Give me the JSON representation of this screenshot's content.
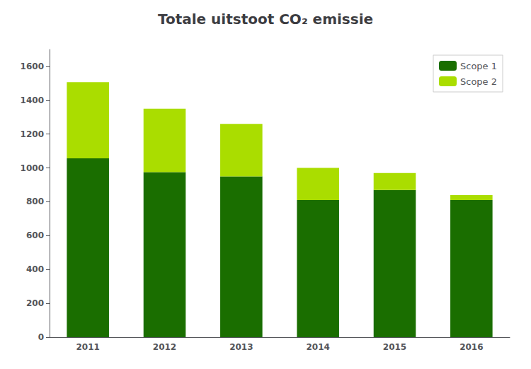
{
  "chart_data": {
    "type": "bar",
    "title": "Totale uitstoot CO₂ emissie",
    "categories": [
      "2011",
      "2012",
      "2013",
      "2014",
      "2015",
      "2016"
    ],
    "series": [
      {
        "name": "Scope 1",
        "color": "#1a6e00",
        "values": [
          1057,
          975,
          950,
          810,
          870,
          810
        ]
      },
      {
        "name": "Scope 2",
        "color": "#aadd00",
        "values": [
          450,
          375,
          310,
          190,
          100,
          30
        ]
      }
    ],
    "ylim": [
      0,
      1700
    ],
    "yticks": [
      0,
      200,
      400,
      600,
      800,
      1000,
      1200,
      1400,
      1600
    ],
    "stacked": true,
    "grid": false,
    "legend": "upper right"
  }
}
